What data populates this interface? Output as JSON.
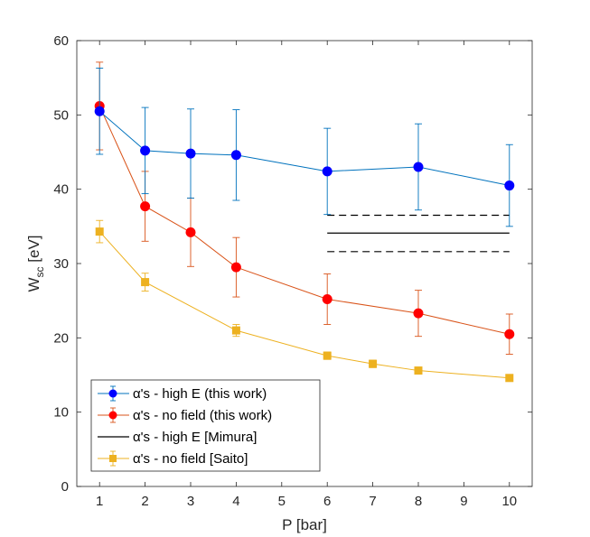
{
  "chart_data": {
    "type": "line",
    "xlabel": "P [bar]",
    "ylabel": {
      "main": "W",
      "sub": "sc",
      "unit": " [eV]"
    },
    "xlim": [
      0.5,
      10.5
    ],
    "ylim": [
      0,
      60
    ],
    "xticks": [
      "1",
      "2",
      "3",
      "4",
      "5",
      "6",
      "7",
      "8",
      "9",
      "10"
    ],
    "yticks": [
      "0",
      "10",
      "20",
      "30",
      "40",
      "50",
      "60"
    ],
    "grid": false,
    "legend_position": "bottom-left",
    "series": [
      {
        "name": "α's - high E    (this work)",
        "color": "#0000ff",
        "line_color": "#0072bd",
        "marker": "circle",
        "x": [
          1,
          2,
          3,
          4,
          6,
          8,
          10
        ],
        "y": [
          50.5,
          45.2,
          44.8,
          44.6,
          42.4,
          43.0,
          40.5
        ],
        "err": [
          5.8,
          5.8,
          6.0,
          6.1,
          5.8,
          5.8,
          5.5
        ]
      },
      {
        "name": "α's - no field  (this work)",
        "color": "#ff0000",
        "line_color": "#d95319",
        "marker": "circle",
        "x": [
          1,
          2,
          3,
          4,
          6,
          8,
          10
        ],
        "y": [
          51.2,
          37.7,
          34.2,
          29.5,
          25.2,
          23.3,
          20.5
        ],
        "err": [
          5.9,
          4.7,
          4.6,
          4.0,
          3.4,
          3.1,
          2.7
        ]
      },
      {
        "name": "α's - high E   [Mimura]",
        "color": "#000000",
        "x": [
          6,
          10
        ],
        "y": [
          34.1,
          34.1
        ],
        "band": [
          31.6,
          36.5
        ]
      },
      {
        "name": "α's - no field  [Saito]",
        "color": "#edb120",
        "line_color": "#edb120",
        "marker": "square",
        "x": [
          1,
          2,
          4,
          6,
          7,
          8,
          10
        ],
        "y": [
          34.3,
          27.5,
          21.0,
          17.6,
          16.5,
          15.6,
          14.6
        ],
        "err": [
          1.5,
          1.2,
          0.8,
          0.5,
          0.5,
          0.4,
          0.4
        ]
      }
    ]
  }
}
